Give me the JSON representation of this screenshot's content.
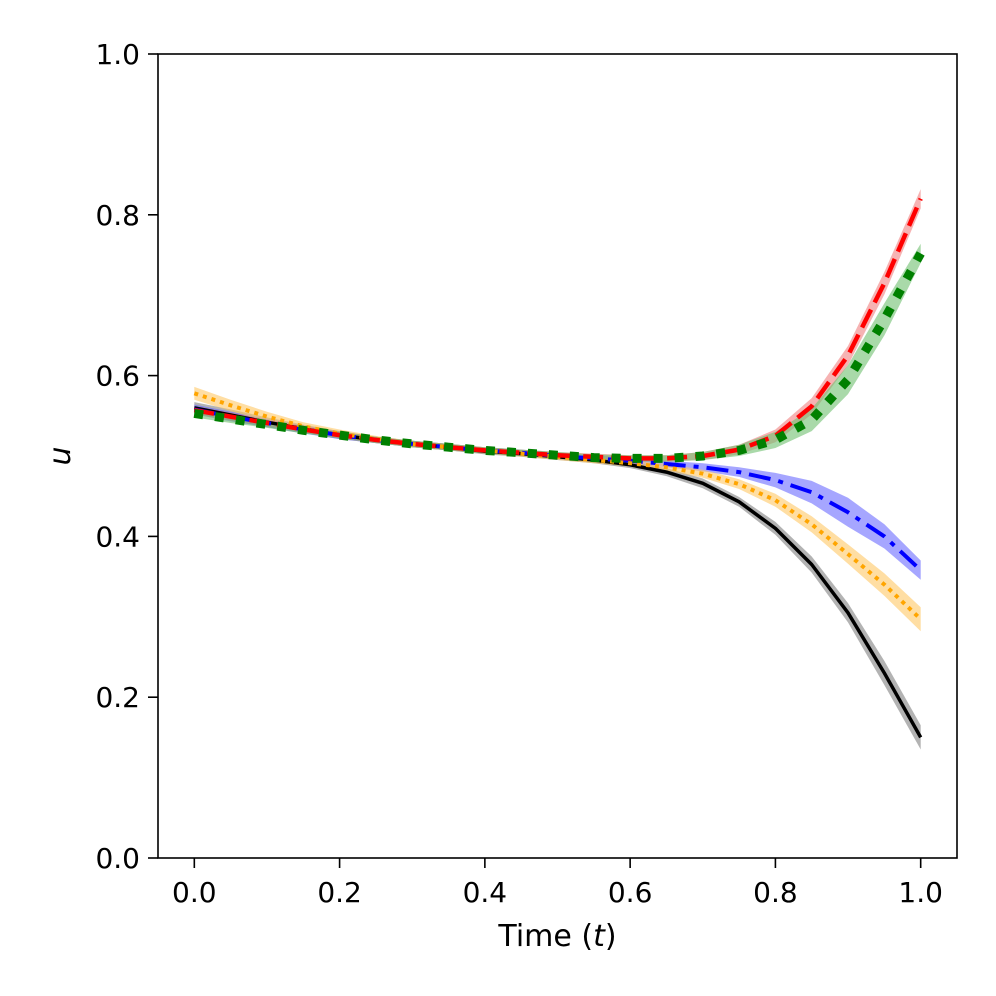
{
  "chart_data": {
    "type": "line",
    "title": "",
    "xlabel_prefix": "Time (",
    "xlabel_var": "t",
    "xlabel_suffix": ")",
    "ylabel": "u",
    "xlim": [
      -0.05,
      1.05
    ],
    "ylim": [
      0.0,
      1.0
    ],
    "xticks": [
      0.0,
      0.2,
      0.4,
      0.6,
      0.8,
      1.0
    ],
    "yticks": [
      0.0,
      0.2,
      0.4,
      0.6,
      0.8,
      1.0
    ],
    "xtick_labels": [
      "0.0",
      "0.2",
      "0.4",
      "0.6",
      "0.8",
      "1.0"
    ],
    "ytick_labels": [
      "0.0",
      "0.2",
      "0.4",
      "0.6",
      "0.8",
      "1.0"
    ],
    "grid": false,
    "x": [
      0.0,
      0.05,
      0.1,
      0.15,
      0.2,
      0.25,
      0.3,
      0.35,
      0.4,
      0.45,
      0.5,
      0.55,
      0.6,
      0.65,
      0.7,
      0.75,
      0.8,
      0.85,
      0.9,
      0.95,
      1.0
    ],
    "series": [
      {
        "color": "#000000",
        "band_color": "#808080",
        "style": "solid",
        "values": [
          0.56,
          0.551,
          0.542,
          0.534,
          0.526,
          0.52,
          0.515,
          0.511,
          0.506,
          0.503,
          0.499,
          0.495,
          0.489,
          0.48,
          0.466,
          0.443,
          0.41,
          0.365,
          0.305,
          0.23,
          0.15
        ],
        "band": [
          0.007,
          0.007,
          0.006,
          0.005,
          0.005,
          0.004,
          0.004,
          0.004,
          0.004,
          0.004,
          0.004,
          0.004,
          0.004,
          0.005,
          0.006,
          0.006,
          0.008,
          0.01,
          0.012,
          0.015,
          0.015
        ]
      },
      {
        "color": "#0000ff",
        "band_color": "#6a6aff",
        "style": "dashdot",
        "values": [
          0.558,
          0.549,
          0.541,
          0.533,
          0.526,
          0.52,
          0.515,
          0.511,
          0.507,
          0.504,
          0.5,
          0.497,
          0.494,
          0.49,
          0.486,
          0.48,
          0.47,
          0.455,
          0.43,
          0.4,
          0.358
        ],
        "band": [
          0.006,
          0.006,
          0.005,
          0.005,
          0.005,
          0.004,
          0.004,
          0.004,
          0.004,
          0.004,
          0.004,
          0.004,
          0.004,
          0.004,
          0.005,
          0.006,
          0.009,
          0.014,
          0.018,
          0.015,
          0.012
        ]
      },
      {
        "color": "#ffa500",
        "band_color": "#ffc866",
        "style": "dotted",
        "values": [
          0.578,
          0.563,
          0.549,
          0.537,
          0.528,
          0.521,
          0.515,
          0.511,
          0.507,
          0.503,
          0.499,
          0.495,
          0.491,
          0.486,
          0.478,
          0.465,
          0.445,
          0.415,
          0.378,
          0.34,
          0.297
        ],
        "band": [
          0.008,
          0.007,
          0.006,
          0.005,
          0.005,
          0.004,
          0.004,
          0.004,
          0.004,
          0.004,
          0.004,
          0.004,
          0.004,
          0.004,
          0.005,
          0.006,
          0.008,
          0.01,
          0.012,
          0.014,
          0.015
        ]
      },
      {
        "color": "#ff0000",
        "band_color": "#f08080",
        "style": "dashed",
        "values": [
          0.557,
          0.549,
          0.541,
          0.533,
          0.526,
          0.52,
          0.515,
          0.511,
          0.507,
          0.504,
          0.501,
          0.499,
          0.497,
          0.497,
          0.5,
          0.508,
          0.525,
          0.562,
          0.625,
          0.715,
          0.82
        ],
        "band": [
          0.005,
          0.005,
          0.004,
          0.004,
          0.004,
          0.004,
          0.004,
          0.004,
          0.004,
          0.004,
          0.004,
          0.004,
          0.004,
          0.004,
          0.005,
          0.006,
          0.008,
          0.01,
          0.012,
          0.014,
          0.012
        ]
      },
      {
        "color": "#008000",
        "band_color": "#6fbf6f",
        "style": "dense-dotted",
        "values": [
          0.553,
          0.546,
          0.539,
          0.532,
          0.526,
          0.52,
          0.515,
          0.511,
          0.507,
          0.504,
          0.501,
          0.498,
          0.497,
          0.497,
          0.5,
          0.507,
          0.52,
          0.545,
          0.595,
          0.67,
          0.752
        ],
        "band": [
          0.005,
          0.005,
          0.004,
          0.004,
          0.004,
          0.004,
          0.004,
          0.004,
          0.004,
          0.004,
          0.004,
          0.004,
          0.004,
          0.004,
          0.005,
          0.007,
          0.01,
          0.014,
          0.018,
          0.02,
          0.012
        ]
      }
    ]
  }
}
